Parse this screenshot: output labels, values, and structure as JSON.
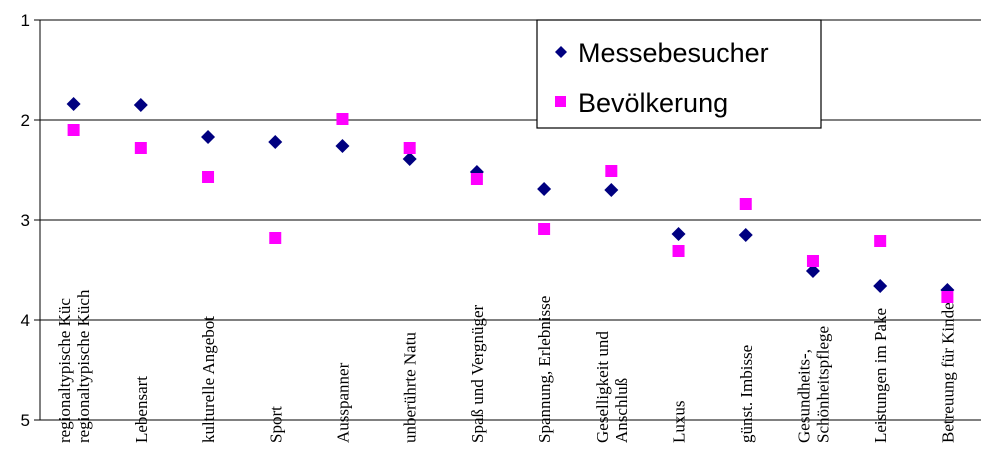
{
  "chart_data": {
    "type": "scatter",
    "title": "",
    "xlabel": "",
    "ylabel": "",
    "ylim": [
      1,
      5
    ],
    "y_inverted": true,
    "y_ticks": [
      "1",
      "2",
      "3",
      "4",
      "5"
    ],
    "grid": "horizontal",
    "legend_position": "top-right",
    "categories": [
      "regionaltypische Küch",
      "Lebensart",
      "kulturelle Angebot",
      "Sport",
      "Ausspanner",
      "unberührte Natu",
      "Spaß und Vergnüger",
      "Spannung, Erlebnisse",
      "Geselligkeit und Anschluß",
      "Luxus",
      "günst. Imbisse",
      "Gesundheits-, Schönheitspflege",
      "Leistungen im Pake",
      "Betreuung für Kinde"
    ],
    "series": [
      {
        "name": "Messebesucher",
        "marker": "diamond",
        "color": "#000080",
        "values": [
          1.84,
          1.85,
          2.17,
          2.22,
          2.26,
          2.39,
          2.52,
          2.69,
          2.7,
          3.14,
          3.15,
          3.51,
          3.66,
          3.7
        ]
      },
      {
        "name": "Bevölkerung",
        "marker": "square",
        "color": "#ff00ff",
        "values": [
          2.1,
          2.28,
          2.57,
          3.18,
          1.99,
          2.28,
          2.59,
          3.09,
          2.51,
          3.31,
          2.84,
          3.41,
          3.21,
          3.77
        ]
      }
    ]
  }
}
